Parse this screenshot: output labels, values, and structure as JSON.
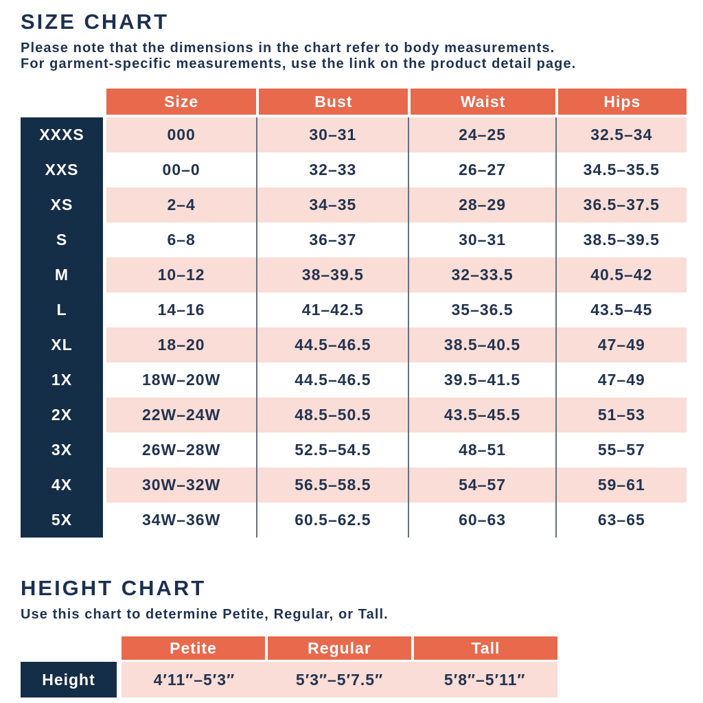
{
  "size_chart": {
    "title": "SIZE CHART",
    "note_line1": "Please note that the dimensions in the chart refer to body measurements.",
    "note_line2": "For garment-specific measurements, use the link on the product detail page.",
    "columns": [
      "Size",
      "Bust",
      "Waist",
      "Hips"
    ],
    "rows": [
      {
        "label": "XXXS",
        "cells": [
          "000",
          "30–31",
          "24–25",
          "32.5–34"
        ]
      },
      {
        "label": "XXS",
        "cells": [
          "00–0",
          "32–33",
          "26–27",
          "34.5–35.5"
        ]
      },
      {
        "label": "XS",
        "cells": [
          "2–4",
          "34–35",
          "28–29",
          "36.5–37.5"
        ]
      },
      {
        "label": "S",
        "cells": [
          "6–8",
          "36–37",
          "30–31",
          "38.5–39.5"
        ]
      },
      {
        "label": "M",
        "cells": [
          "10–12",
          "38–39.5",
          "32–33.5",
          "40.5–42"
        ]
      },
      {
        "label": "L",
        "cells": [
          "14–16",
          "41–42.5",
          "35–36.5",
          "43.5–45"
        ]
      },
      {
        "label": "XL",
        "cells": [
          "18–20",
          "44.5–46.5",
          "38.5–40.5",
          "47–49"
        ]
      },
      {
        "label": "1X",
        "cells": [
          "18W–20W",
          "44.5–46.5",
          "39.5–41.5",
          "47–49"
        ]
      },
      {
        "label": "2X",
        "cells": [
          "22W–24W",
          "48.5–50.5",
          "43.5–45.5",
          "51–53"
        ]
      },
      {
        "label": "3X",
        "cells": [
          "26W–28W",
          "52.5–54.5",
          "48–51",
          "55–57"
        ]
      },
      {
        "label": "4X",
        "cells": [
          "30W–32W",
          "56.5–58.5",
          "54–57",
          "59–61"
        ]
      },
      {
        "label": "5X",
        "cells": [
          "34W–36W",
          "60.5–62.5",
          "60–63",
          "63–65"
        ]
      }
    ]
  },
  "height_chart": {
    "title": "HEIGHT CHART",
    "note": "Use this chart to determine Petite, Regular, or Tall.",
    "columns": [
      "Petite",
      "Regular",
      "Tall"
    ],
    "row_label": "Height",
    "values": [
      "4′11″–5′3″",
      "5′3″–5′7.5″",
      "5′8″–5′11″"
    ]
  },
  "colors": {
    "header_orange": "#e8694c",
    "label_navy": "#152e47",
    "row_pink": "#f9ddd6",
    "text_navy": "#1e3252",
    "divider_gray": "#66707e"
  }
}
